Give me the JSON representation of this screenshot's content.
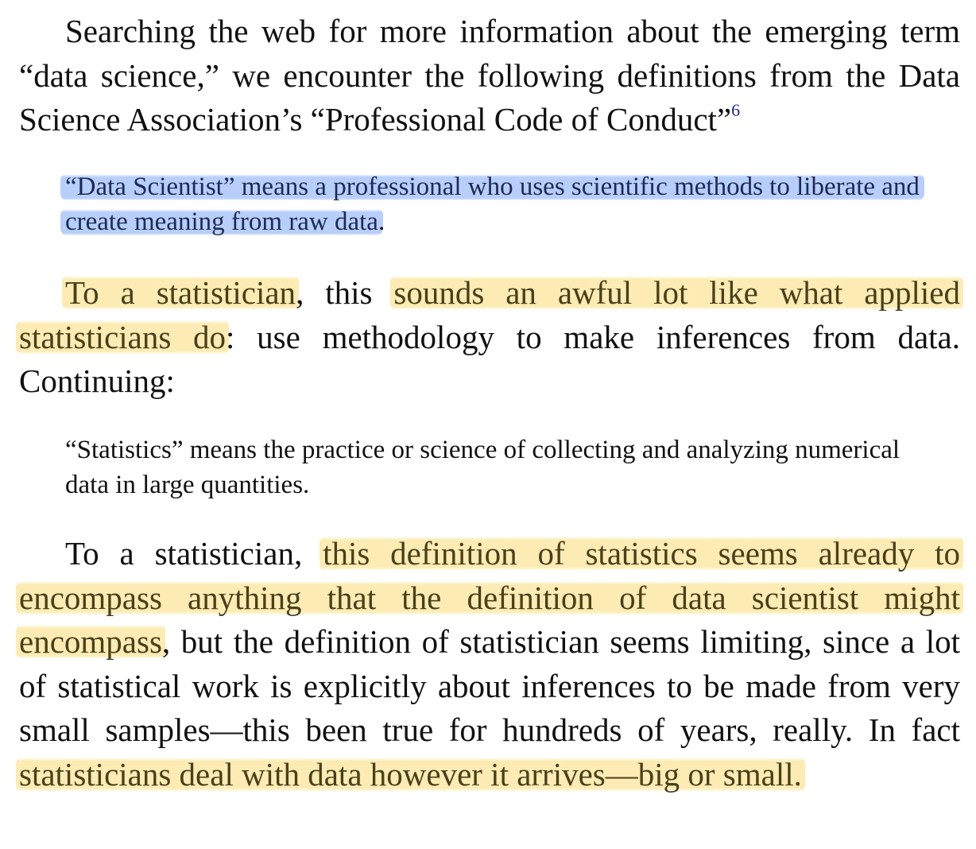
{
  "paragraph1": {
    "text": "Searching the web for more information about the emerging term “data science,” we encounter the following definitions from the Data Science Association’s “Professional Code of Conduct”",
    "footnote": "6"
  },
  "quote1": {
    "highlight": "“Data Scientist” means a professional who uses scientific methods to liberate and create meaning from raw data",
    "end": "."
  },
  "paragraph2": {
    "hl1": "To a statistician",
    "t1": ", this ",
    "hl2": "sounds an awful lot like what applied statisticians do",
    "t2": ": use methodology to make inferences from data. Continuing:"
  },
  "quote2": {
    "text": "“Statistics” means the practice or science of collecting and analyzing numerical data in large quantities."
  },
  "paragraph3": {
    "t1": "To a statistician, ",
    "hl1": "this definition of statistics seems already to encompass anything that the definition of data scientist might encompass",
    "t2": ", but the definition of statistician seems limiting, since a lot of statistical work is explicitly about inferences to be made from very small samples—this been true for hundreds of years, really. In fact ",
    "hl2": "statisticians deal with data however it arrives—big or small."
  },
  "colors": {
    "highlight_yellow": "#fbe9a6",
    "highlight_blue": "#b4ccfa",
    "footnote_link": "#1a2a9a"
  }
}
